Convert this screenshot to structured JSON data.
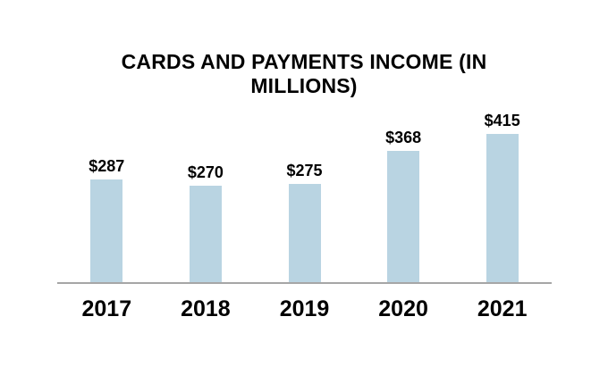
{
  "chart_data": {
    "type": "bar",
    "title": "CARDS AND PAYMENTS INCOME (IN MILLIONS)",
    "categories": [
      "2017",
      "2018",
      "2019",
      "2020",
      "2021"
    ],
    "values": [
      287,
      270,
      275,
      368,
      415
    ],
    "value_labels": [
      "$287",
      "$270",
      "$275",
      "$368",
      "$415"
    ],
    "xlabel": "",
    "ylabel": "",
    "ylim": [
      0,
      415
    ],
    "grid": false,
    "legend": false,
    "colors": {
      "bar_fill": "#b9d4e2",
      "axis_line": "#a6a6a6",
      "text": "#000000",
      "background": "#ffffff"
    }
  }
}
